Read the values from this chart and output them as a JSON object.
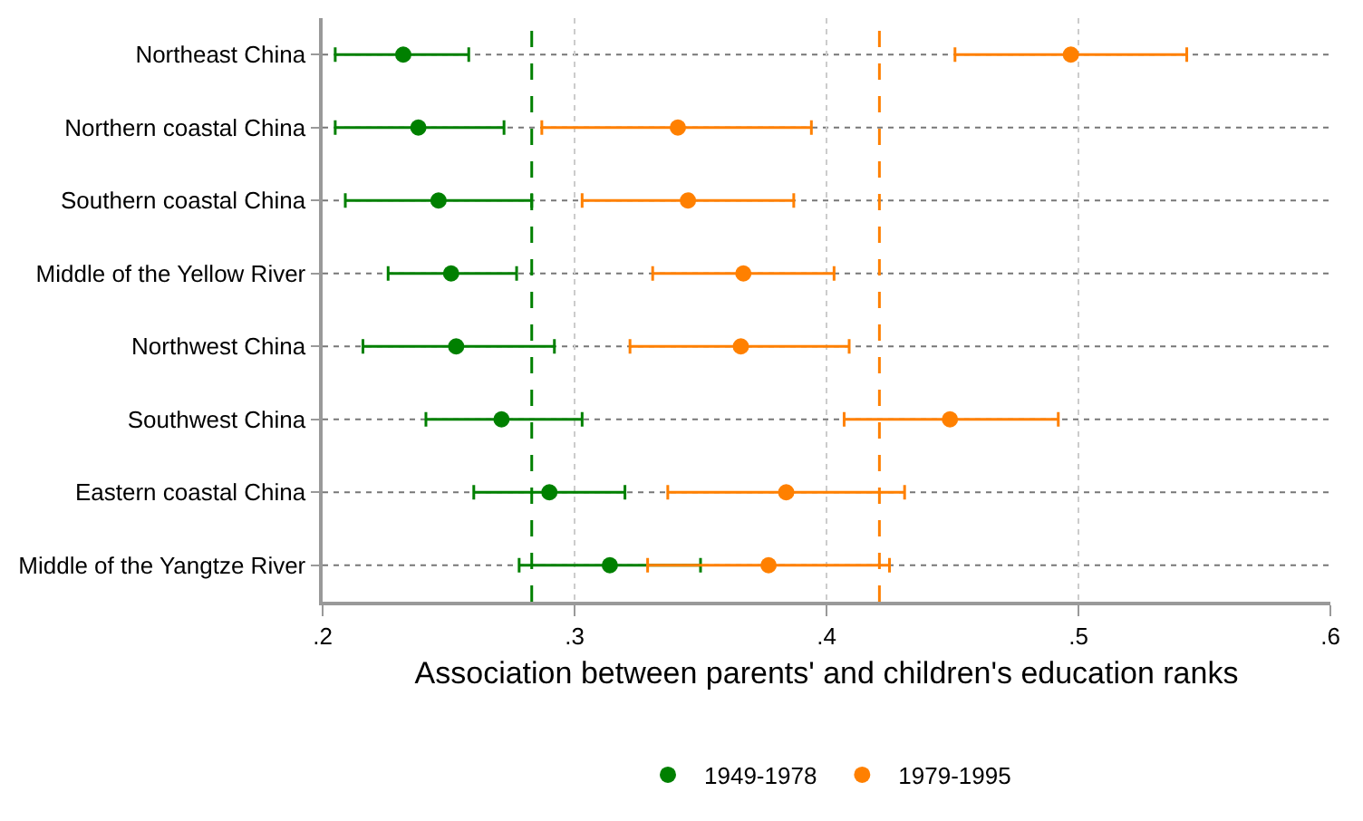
{
  "chart_data": {
    "type": "scatter",
    "orientation": "horizontal",
    "xlabel": "Association between parents' and children's education ranks",
    "categories": [
      "Northeast China",
      "Northern coastal China",
      "Southern coastal China",
      "Middle of the Yellow River",
      "Northwest China",
      "Southwest China",
      "Eastern coastal China",
      "Middle of the Yangtze River"
    ],
    "series": [
      {
        "name": "1949-1978",
        "color": "#008000",
        "values": [
          0.232,
          0.238,
          0.246,
          0.251,
          0.253,
          0.271,
          0.29,
          0.314
        ],
        "errors": [
          [
            0.205,
            0.258
          ],
          [
            0.205,
            0.272
          ],
          [
            0.209,
            0.283
          ],
          [
            0.226,
            0.277
          ],
          [
            0.216,
            0.292
          ],
          [
            0.241,
            0.303
          ],
          [
            0.26,
            0.32
          ],
          [
            0.278,
            0.35
          ]
        ]
      },
      {
        "name": "1979-1995",
        "color": "#ff8000",
        "values": [
          0.497,
          0.341,
          0.345,
          0.367,
          0.366,
          0.449,
          0.384,
          0.377
        ],
        "errors": [
          [
            0.451,
            0.543
          ],
          [
            0.287,
            0.394
          ],
          [
            0.303,
            0.387
          ],
          [
            0.331,
            0.403
          ],
          [
            0.322,
            0.409
          ],
          [
            0.407,
            0.492
          ],
          [
            0.337,
            0.431
          ],
          [
            0.329,
            0.425
          ]
        ]
      }
    ],
    "xlim": [
      0.2,
      0.6
    ],
    "xticks": [
      {
        "value": 0.2,
        "label": ".2"
      },
      {
        "value": 0.3,
        "label": ".3"
      },
      {
        "value": 0.4,
        "label": ".4"
      },
      {
        "value": 0.5,
        "label": ".5"
      },
      {
        "value": 0.6,
        "label": ".6"
      }
    ],
    "ref_lines": [
      {
        "axis": "x",
        "value": 0.283,
        "color": "#008000",
        "line_style": "dashed"
      },
      {
        "axis": "x",
        "value": 0.421,
        "color": "#ff8000",
        "line_style": "dashed"
      }
    ],
    "grid": true,
    "legend": "bottom",
    "marker": "circle"
  }
}
